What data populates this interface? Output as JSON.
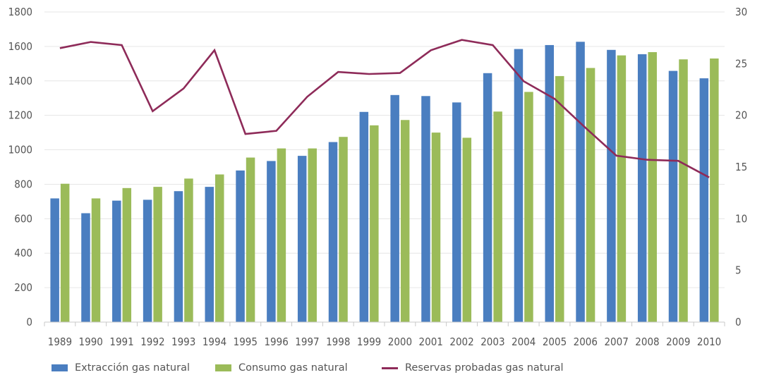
{
  "chart_data": {
    "type": "bar",
    "categories": [
      "1989",
      "1990",
      "1991",
      "1992",
      "1993",
      "1994",
      "1995",
      "1996",
      "1997",
      "1998",
      "1999",
      "2000",
      "2001",
      "2002",
      "2003",
      "2004",
      "2005",
      "2006",
      "2007",
      "2008",
      "2009",
      "2010"
    ],
    "series": [
      {
        "name": "Extracción gas natural",
        "kind": "bar",
        "axis": "left",
        "color": "#4a7ec0",
        "values": [
          718,
          632,
          705,
          710,
          760,
          785,
          880,
          935,
          965,
          1045,
          1220,
          1318,
          1312,
          1275,
          1445,
          1585,
          1608,
          1627,
          1580,
          1555,
          1458,
          1415
        ]
      },
      {
        "name": "Consumo gas natural",
        "kind": "bar",
        "axis": "left",
        "color": "#9bbb59",
        "values": [
          803,
          718,
          778,
          785,
          833,
          857,
          955,
          1008,
          1008,
          1075,
          1142,
          1173,
          1100,
          1070,
          1222,
          1336,
          1428,
          1475,
          1548,
          1567,
          1525,
          1530
        ]
      },
      {
        "name": "Reservas probadas gas natural",
        "kind": "line",
        "axis": "right",
        "color": "#8e2b59",
        "values": [
          26.5,
          27.1,
          26.8,
          20.4,
          22.6,
          26.3,
          18.2,
          18.5,
          21.8,
          24.2,
          24.0,
          24.1,
          26.3,
          27.3,
          26.8,
          23.3,
          21.6,
          18.8,
          16.1,
          15.7,
          15.6,
          14.0
        ]
      }
    ],
    "y_left": {
      "min": 0,
      "max": 1800,
      "ticks": [
        0,
        200,
        400,
        600,
        800,
        1000,
        1200,
        1400,
        1600,
        1800
      ]
    },
    "y_right": {
      "min": 0,
      "max": 30,
      "ticks": [
        0,
        5,
        10,
        15,
        20,
        25,
        30
      ]
    },
    "grid": true,
    "legend_position": "bottom"
  }
}
